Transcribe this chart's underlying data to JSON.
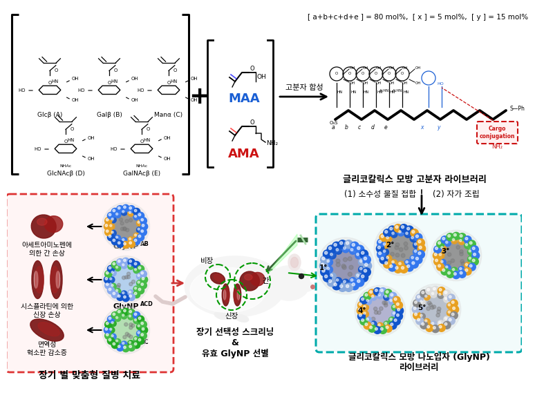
{
  "bg_color": "#ffffff",
  "top_formula": "[ a+b+c+d+e ] = 80 mol%,  [ x ] = 5 mol%,  [ y ] = 15 mol%",
  "maa_label": "MAA",
  "ama_label": "AMA",
  "polymer_synthesis_arrow": "고분자 합성",
  "glycocalyx_polymer": "글리코칼릭스 모방 고분자 라이브러리",
  "cargo_label": "Cargo\nconjugation",
  "step1_label": "(1) 소수성 물질 접합",
  "step2_label": "(2) 자가 조립",
  "red_box_title": "장기 별 맞춤형 질병 치료",
  "disease1_text": "아세트아미노펜에\n의한 간 손상",
  "disease2_text": "시스플라틴에 의한\n신장 손상",
  "disease3_text": "면역성\n혁소판 감소증",
  "spleen_label": "비장",
  "kidney_label": "신장",
  "liver_label": "간",
  "organ_screen_label": "장기 선택성 스크리닝\n&\n유효 GlyNP 선별",
  "gnp_library_title": "글리코칼릭스 모방 나노입자 (GlyNP)\n라이브러리",
  "gnp_numbers": [
    "1°",
    "2°",
    "3°",
    "4°",
    "5°"
  ],
  "sugar_row1": [
    "Glcβ (A)",
    "Galβ (B)",
    "Manα (C)"
  ],
  "sugar_row2": [
    "GlcNAcβ (D)",
    "GalNAcβ (E)"
  ],
  "blue_color": "#1a5fd4",
  "red_color": "#cc1111",
  "green_color": "#009900",
  "teal_border_color": "#00aaaa",
  "red_border_color": "#dd3333",
  "np1_colors": [
    "#1155cc",
    "#3377ee",
    "#88aadd"
  ],
  "np2_colors": [
    "#1155cc",
    "#e8a020",
    "#3377ee"
  ],
  "np3_colors": [
    "#e8a020",
    "#44bb44",
    "#3377ee"
  ],
  "np4_colors": [
    "#44bb44",
    "#e8a020",
    "#1155cc",
    "#88aaee"
  ],
  "np5_colors": [
    "#e8a020",
    "#aabbdd",
    "#888888",
    "#dddddd"
  ],
  "np_ab_colors": [
    "#1155cc",
    "#e8a020",
    "#3377ee"
  ],
  "np_acd_colors": [
    "#44bb44",
    "#88aaee",
    "#1155cc"
  ],
  "np_ac_colors": [
    "#44bb44",
    "#3377ee",
    "#22aa22"
  ]
}
